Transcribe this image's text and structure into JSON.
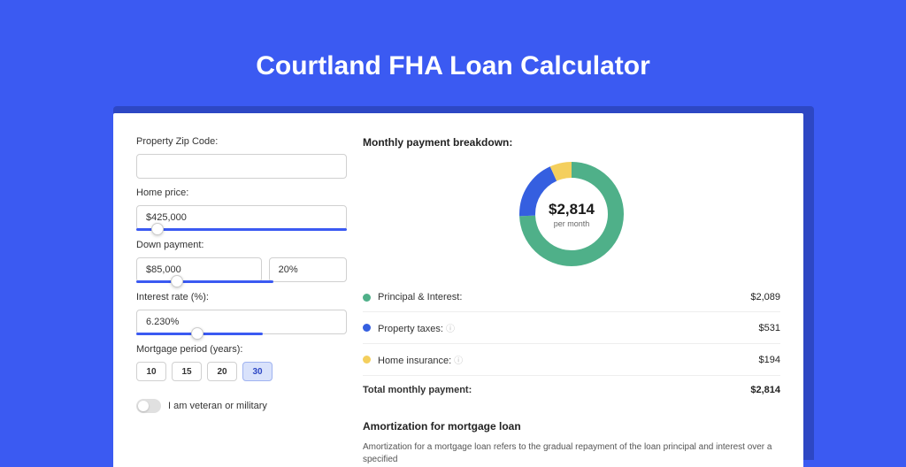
{
  "page_title": "Courtland FHA Loan Calculator",
  "colors": {
    "page_bg": "#3b5af2",
    "shadow_bg": "#2d47c4",
    "card_bg": "#ffffff",
    "slider_accent": "#3b5af2"
  },
  "form": {
    "zip_label": "Property Zip Code:",
    "zip_value": "",
    "home_price_label": "Home price:",
    "home_price_value": "$425,000",
    "home_price_slider_pct": 10,
    "down_payment_label": "Down payment:",
    "down_payment_value": "$85,000",
    "down_payment_pct": "20%",
    "down_payment_slider_pct": 30,
    "interest_label": "Interest rate (%):",
    "interest_value": "6.230%",
    "interest_slider_pct": 48,
    "period_label": "Mortgage period (years):",
    "periods": [
      "10",
      "15",
      "20",
      "30"
    ],
    "period_active_index": 3,
    "veteran_label": "I am veteran or military",
    "veteran_on": false
  },
  "breakdown": {
    "title": "Monthly payment breakdown:",
    "donut": {
      "center_value": "$2,814",
      "center_sub": "per month",
      "segments": [
        {
          "key": "principal_interest",
          "value": 2089,
          "color": "#4fb089"
        },
        {
          "key": "property_taxes",
          "value": 531,
          "color": "#355fe0"
        },
        {
          "key": "home_insurance",
          "value": 194,
          "color": "#f4cf5d"
        }
      ],
      "thickness": 18
    },
    "rows": [
      {
        "dot": "#4fb089",
        "label": "Principal & Interest:",
        "help": false,
        "value": "$2,089"
      },
      {
        "dot": "#355fe0",
        "label": "Property taxes:",
        "help": true,
        "value": "$531"
      },
      {
        "dot": "#f4cf5d",
        "label": "Home insurance:",
        "help": true,
        "value": "$194"
      }
    ],
    "total_label": "Total monthly payment:",
    "total_value": "$2,814"
  },
  "amortization": {
    "title": "Amortization for mortgage loan",
    "text": "Amortization for a mortgage loan refers to the gradual repayment of the loan principal and interest over a specified"
  }
}
